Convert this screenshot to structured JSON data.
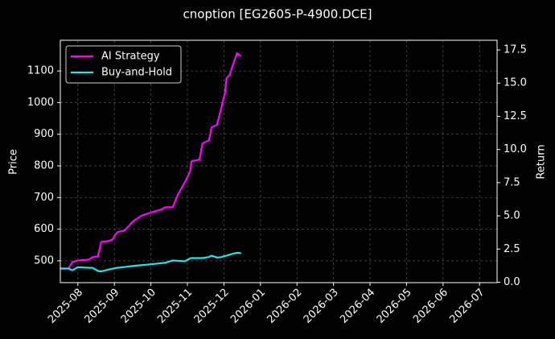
{
  "chart_data": {
    "type": "line",
    "title": "cnoption [EG2605-P-4900.DCE]",
    "y_label": "Price",
    "y2_label": "Return",
    "x": [
      7.52,
      7.74,
      7.85,
      8.0,
      8.29,
      8.4,
      8.55,
      8.64,
      8.84,
      8.95,
      9.08,
      9.28,
      9.5,
      9.72,
      9.83,
      10.05,
      10.27,
      10.4,
      10.6,
      10.71,
      10.93,
      11.08,
      11.11,
      11.33,
      11.41,
      11.59,
      11.66,
      11.81,
      11.92,
      12.03,
      12.07,
      12.16,
      12.25,
      12.36,
      12.47
    ],
    "series": [
      {
        "name": "AI Strategy",
        "color": "#ff00ff",
        "axis": "y2",
        "values": [
          1.03,
          1.03,
          1.52,
          1.64,
          1.7,
          1.88,
          1.94,
          3.04,
          3.1,
          3.22,
          3.77,
          3.89,
          4.56,
          4.98,
          5.1,
          5.29,
          5.47,
          5.65,
          5.65,
          6.44,
          7.53,
          8.39,
          9.11,
          9.24,
          10.45,
          10.69,
          11.67,
          11.85,
          13.06,
          14.28,
          15.37,
          15.61,
          16.41,
          17.26,
          17.02
        ]
      },
      {
        "name": "Buy-and-Hold",
        "color": "#22e4ee",
        "axis": "y2",
        "values": [
          1.03,
          1.03,
          0.9,
          1.14,
          1.09,
          1.09,
          0.85,
          0.82,
          0.95,
          1.02,
          1.09,
          1.15,
          1.22,
          1.28,
          1.31,
          1.37,
          1.43,
          1.47,
          1.64,
          1.62,
          1.58,
          1.8,
          1.82,
          1.82,
          1.82,
          1.9,
          2.0,
          1.86,
          1.89,
          1.98,
          2.0,
          2.08,
          2.15,
          2.22,
          2.19
        ]
      }
    ],
    "xlim": [
      7.52,
      19.48
    ],
    "xticks": [
      {
        "value": 8,
        "label": "2025-08"
      },
      {
        "value": 9,
        "label": "2025-09"
      },
      {
        "value": 10,
        "label": "2025-10"
      },
      {
        "value": 11,
        "label": "2025-11"
      },
      {
        "value": 12,
        "label": "2025-12"
      },
      {
        "value": 13,
        "label": "2026-01"
      },
      {
        "value": 14,
        "label": "2026-02"
      },
      {
        "value": 15,
        "label": "2026-03"
      },
      {
        "value": 16,
        "label": "2026-04"
      },
      {
        "value": 17,
        "label": "2026-05"
      },
      {
        "value": 18,
        "label": "2026-06"
      },
      {
        "value": 19,
        "label": "2026-07"
      }
    ],
    "ylim": [
      431,
      1197
    ],
    "yticks": [
      500,
      600,
      700,
      800,
      900,
      1000,
      1100
    ],
    "y2lim": [
      -0.03,
      18.23
    ],
    "y2ticks": [
      {
        "value": 0,
        "label": "0.0"
      },
      2.5,
      {
        "value": 5,
        "label": "5.0"
      },
      7.5,
      {
        "value": 10,
        "label": "10.0"
      },
      12.5,
      {
        "value": 15,
        "label": "15.0"
      },
      17.5
    ],
    "grid": true,
    "legend": "upper left"
  }
}
